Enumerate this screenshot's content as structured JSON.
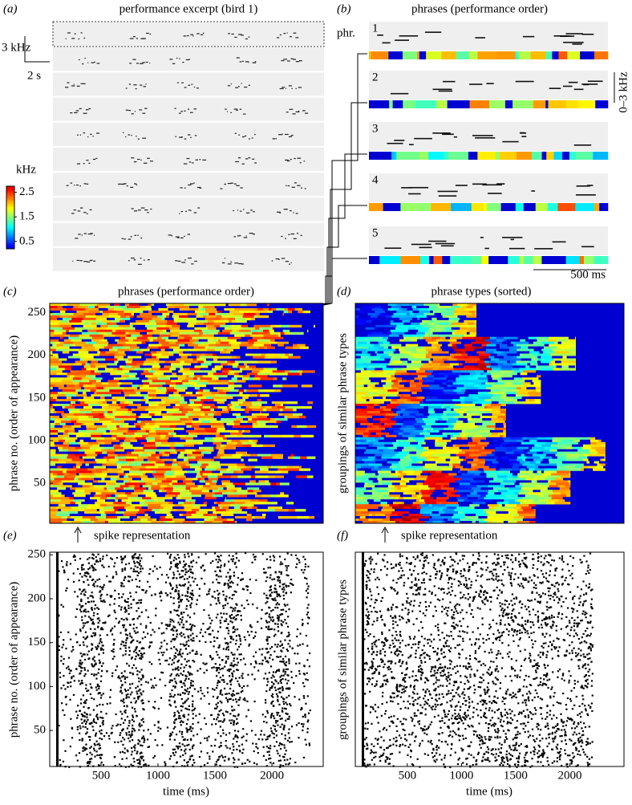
{
  "chart_data": [
    {
      "type": "spectrogram",
      "panel_label": "(a)",
      "title": "performance excerpt (bird 1)",
      "scale_bars": {
        "frequency": "3 kHz",
        "time": "2 s"
      },
      "colorbar": {
        "label": "kHz",
        "ylim": [
          0.2,
          2.75
        ],
        "yticks": [
          0.5,
          1.5,
          2.5
        ]
      }
    },
    {
      "type": "spectrogram",
      "panel_label": "(b)",
      "title": "phrases (performance order)",
      "row_label": "phr.",
      "phrases": [
        "1",
        "2",
        "3",
        "4",
        "5"
      ],
      "scale_bars": {
        "frequency": "0–3 kHz",
        "time": "500 ms"
      }
    },
    {
      "type": "heatmap",
      "panel_label": "(c)",
      "title": "phrases (performance order)",
      "ylabel": "phrase no. (order of appearance)",
      "ylim": [
        3,
        261
      ],
      "yticks": [
        50,
        100,
        150,
        200,
        250
      ]
    },
    {
      "type": "heatmap",
      "panel_label": "(d)",
      "title": "phrase types (sorted)",
      "ylabel": "groupings of similar phrase types"
    },
    {
      "type": "raster",
      "panel_label": "(e)",
      "annotation": "spike representation",
      "xlabel": "time (ms)",
      "ylabel": "phrase no. (order of appearance)",
      "xlim": [
        50,
        2450
      ],
      "xticks": [
        500,
        1000,
        1500,
        2000
      ],
      "ylim": [
        9,
        253
      ],
      "yticks": [
        50,
        100,
        150,
        200,
        250
      ]
    },
    {
      "type": "raster",
      "panel_label": "(f)",
      "annotation": "spike representation",
      "xlabel": "time (ms)",
      "ylabel": "groupings of similar phrase types",
      "xlim": [
        20,
        2500
      ],
      "xticks": [
        500,
        1000,
        1500,
        2000
      ]
    }
  ]
}
